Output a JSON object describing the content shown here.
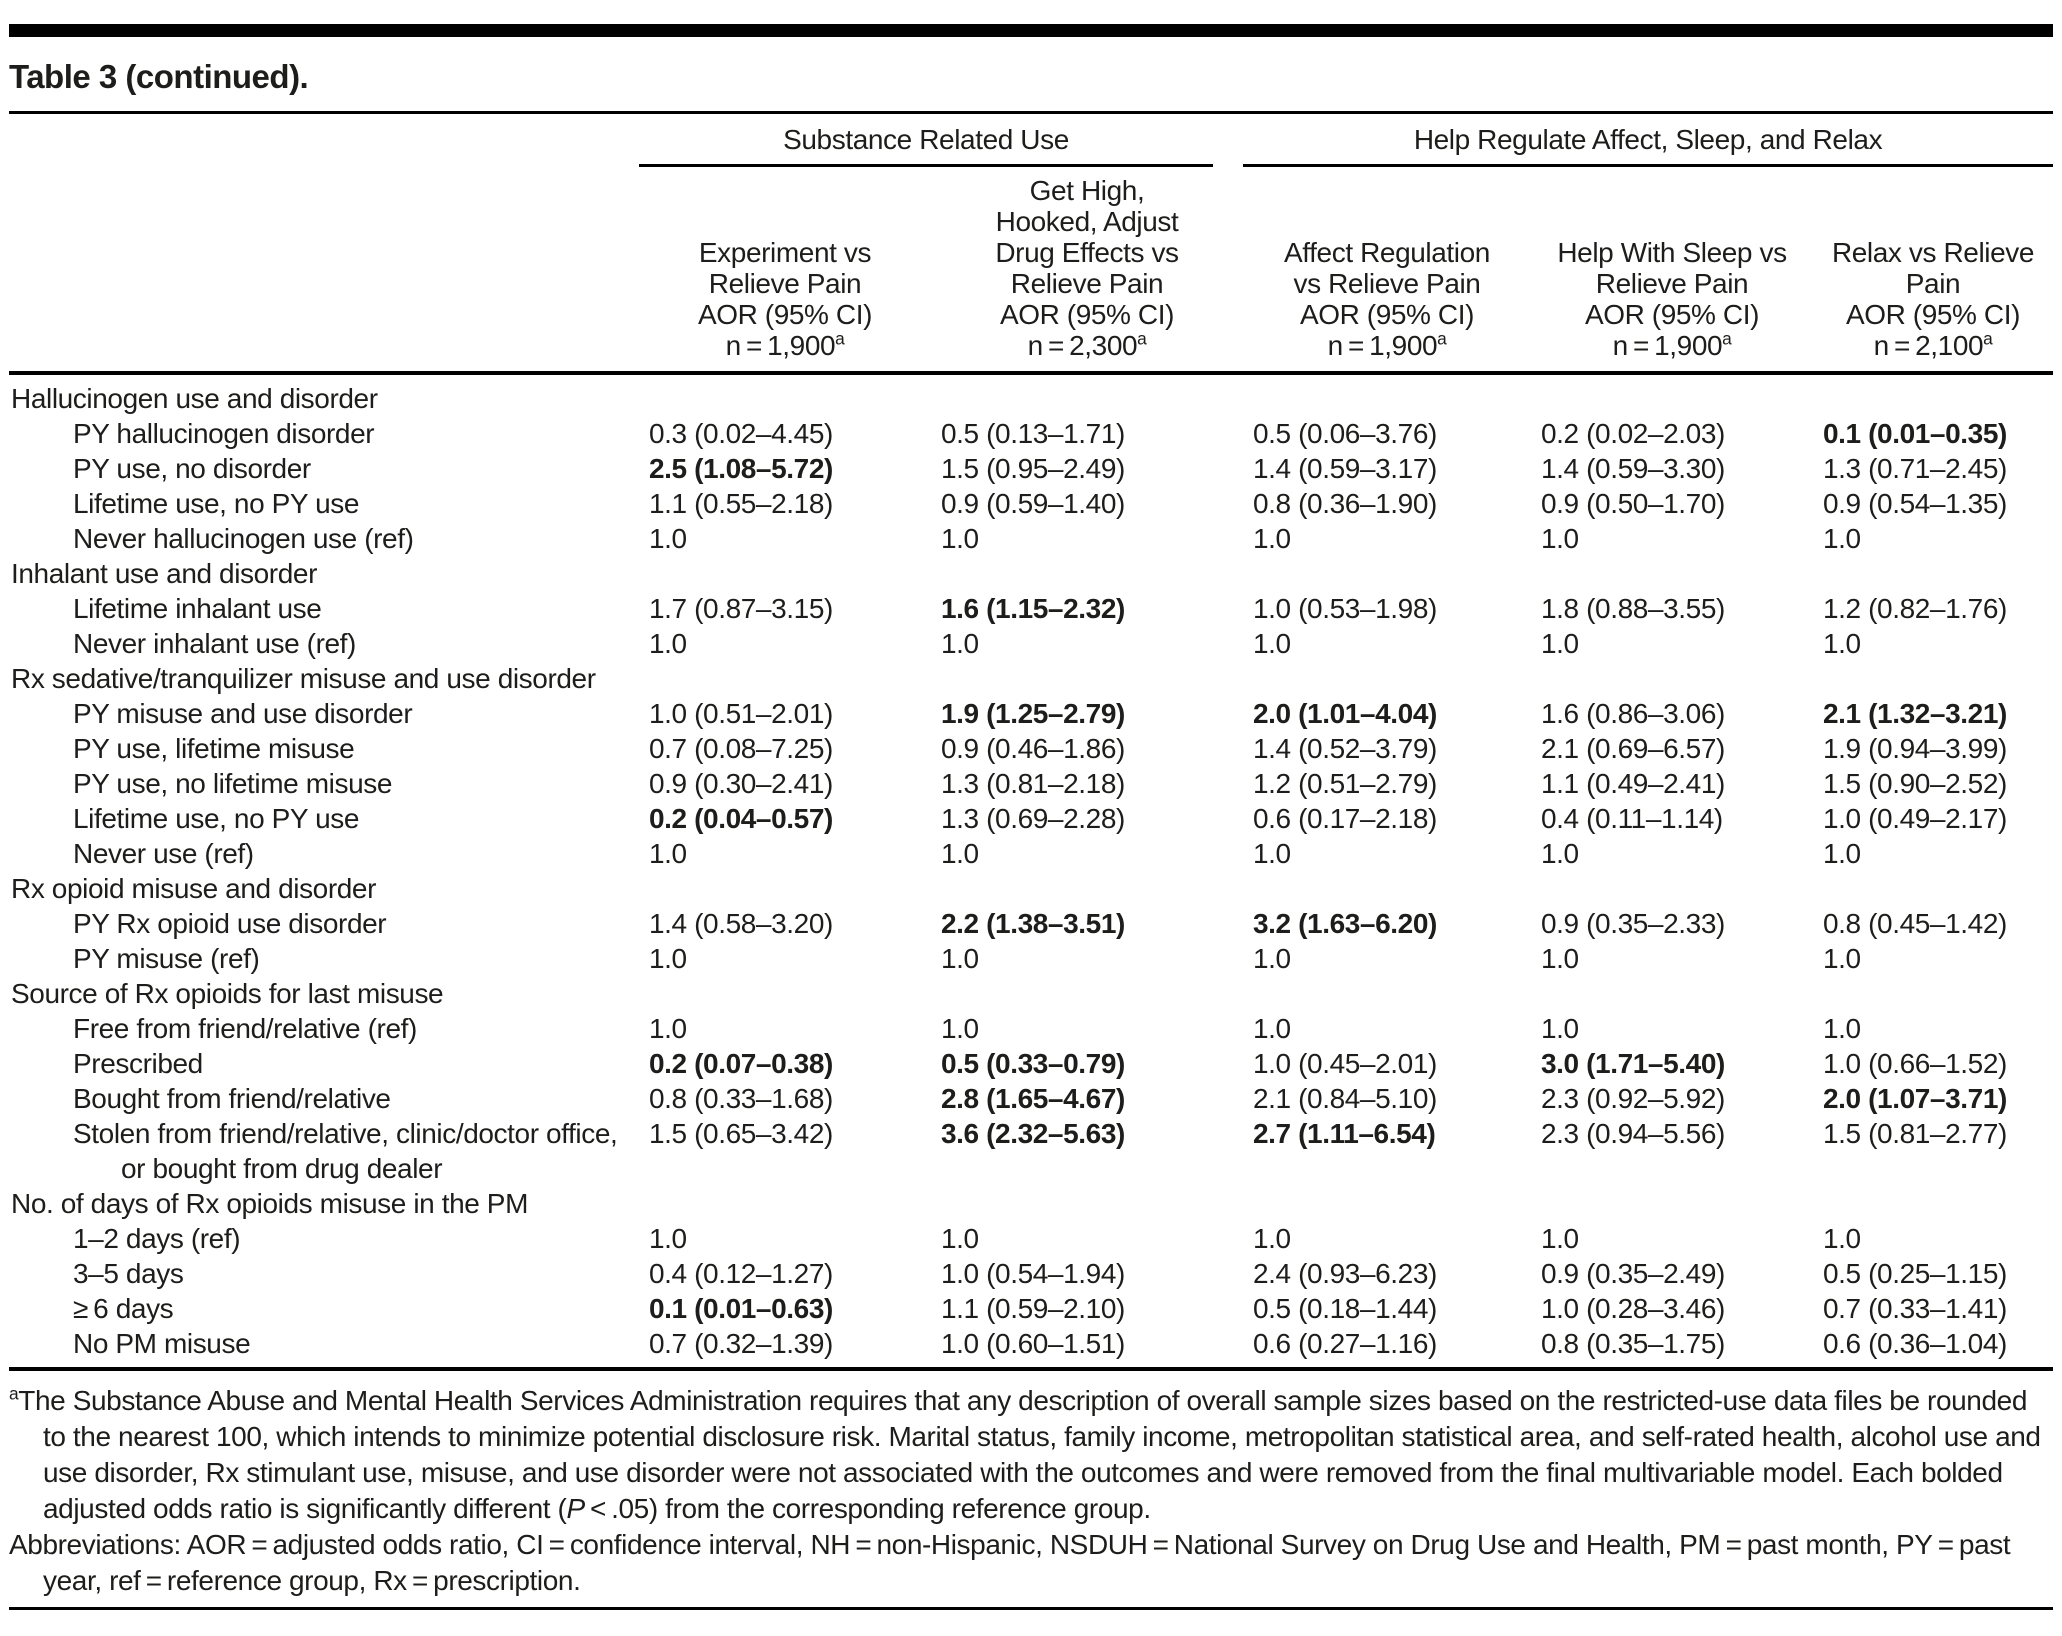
{
  "title": "Table 3 (continued).",
  "colors": {
    "text": "#1d1d1b",
    "rule": "#000000",
    "background": "#ffffff"
  },
  "table": {
    "col_groups": [
      {
        "label": "Substance Related Use",
        "span": 2
      },
      {
        "label": "Help Regulate Affect, Sleep, and Relax",
        "span": 3
      }
    ],
    "columns": [
      {
        "header_lines": [
          [
            {
              "text": "Experiment vs"
            }
          ],
          [
            {
              "text": "Relieve Pain"
            }
          ],
          [
            {
              "text": "AOR (95% CI)"
            }
          ],
          [
            {
              "text": "n = 1,900"
            },
            {
              "sup": "a"
            }
          ]
        ]
      },
      {
        "header_lines": [
          [
            {
              "text": "Get High,"
            }
          ],
          [
            {
              "text": "Hooked, Adjust"
            }
          ],
          [
            {
              "text": "Drug Effects vs"
            }
          ],
          [
            {
              "text": "Relieve Pain"
            }
          ],
          [
            {
              "text": "AOR (95% CI)"
            }
          ],
          [
            {
              "text": "n = 2,300"
            },
            {
              "sup": "a"
            }
          ]
        ]
      },
      {
        "header_lines": [
          [
            {
              "text": "Affect Regulation"
            }
          ],
          [
            {
              "text": "vs Relieve Pain"
            }
          ],
          [
            {
              "text": "AOR (95% CI)"
            }
          ],
          [
            {
              "text": "n = 1,900"
            },
            {
              "sup": "a"
            }
          ]
        ]
      },
      {
        "header_lines": [
          [
            {
              "text": "Help With Sleep vs"
            }
          ],
          [
            {
              "text": "Relieve Pain"
            }
          ],
          [
            {
              "text": "AOR (95% CI)"
            }
          ],
          [
            {
              "text": "n = 1,900"
            },
            {
              "sup": "a"
            }
          ]
        ]
      },
      {
        "header_lines": [
          [
            {
              "text": "Relax vs Relieve"
            }
          ],
          [
            {
              "text": "Pain"
            }
          ],
          [
            {
              "text": "AOR (95% CI)"
            }
          ],
          [
            {
              "text": "n = 2,100"
            },
            {
              "sup": "a"
            }
          ]
        ]
      }
    ],
    "rows": [
      {
        "type": "section",
        "label": "Hallucinogen use and disorder",
        "cells": null
      },
      {
        "type": "data",
        "label": "PY hallucinogen disorder",
        "cells": [
          {
            "v": "0.3 (0.02–4.45)"
          },
          {
            "v": "0.5 (0.13–1.71)"
          },
          {
            "v": "0.5 (0.06–3.76)"
          },
          {
            "v": "0.2 (0.02–2.03)"
          },
          {
            "v": "0.1 (0.01–0.35)",
            "b": true
          }
        ]
      },
      {
        "type": "data",
        "label": "PY use, no disorder",
        "cells": [
          {
            "v": "2.5 (1.08–5.72)",
            "b": true
          },
          {
            "v": "1.5 (0.95–2.49)"
          },
          {
            "v": "1.4 (0.59–3.17)"
          },
          {
            "v": "1.4 (0.59–3.30)"
          },
          {
            "v": "1.3 (0.71–2.45)"
          }
        ]
      },
      {
        "type": "data",
        "label": "Lifetime use, no PY use",
        "cells": [
          {
            "v": "1.1 (0.55–2.18)"
          },
          {
            "v": "0.9 (0.59–1.40)"
          },
          {
            "v": "0.8 (0.36–1.90)"
          },
          {
            "v": "0.9 (0.50–1.70)"
          },
          {
            "v": "0.9 (0.54–1.35)"
          }
        ]
      },
      {
        "type": "data",
        "label": "Never hallucinogen use (ref)",
        "cells": [
          {
            "v": "1.0"
          },
          {
            "v": "1.0"
          },
          {
            "v": "1.0"
          },
          {
            "v": "1.0"
          },
          {
            "v": "1.0"
          }
        ]
      },
      {
        "type": "section",
        "label": "Inhalant use and disorder",
        "cells": null
      },
      {
        "type": "data",
        "label": "Lifetime inhalant use",
        "cells": [
          {
            "v": "1.7 (0.87–3.15)"
          },
          {
            "v": "1.6 (1.15–2.32)",
            "b": true
          },
          {
            "v": "1.0 (0.53–1.98)"
          },
          {
            "v": "1.8 (0.88–3.55)"
          },
          {
            "v": "1.2 (0.82–1.76)"
          }
        ]
      },
      {
        "type": "data",
        "label": "Never inhalant use (ref)",
        "cells": [
          {
            "v": "1.0"
          },
          {
            "v": "1.0"
          },
          {
            "v": "1.0"
          },
          {
            "v": "1.0"
          },
          {
            "v": "1.0"
          }
        ]
      },
      {
        "type": "section",
        "label": "Rx sedative/tranquilizer misuse and use disorder",
        "cells": null
      },
      {
        "type": "data",
        "label": "PY misuse and use disorder",
        "cells": [
          {
            "v": "1.0 (0.51–2.01)"
          },
          {
            "v": "1.9 (1.25–2.79)",
            "b": true
          },
          {
            "v": "2.0 (1.01–4.04)",
            "b": true
          },
          {
            "v": "1.6 (0.86–3.06)"
          },
          {
            "v": "2.1 (1.32–3.21)",
            "b": true
          }
        ]
      },
      {
        "type": "data",
        "label": "PY use, lifetime misuse",
        "cells": [
          {
            "v": "0.7 (0.08–7.25)"
          },
          {
            "v": "0.9 (0.46–1.86)"
          },
          {
            "v": "1.4 (0.52–3.79)"
          },
          {
            "v": "2.1 (0.69–6.57)"
          },
          {
            "v": "1.9 (0.94–3.99)"
          }
        ]
      },
      {
        "type": "data",
        "label": "PY use, no lifetime misuse",
        "cells": [
          {
            "v": "0.9 (0.30–2.41)"
          },
          {
            "v": "1.3 (0.81–2.18)"
          },
          {
            "v": "1.2 (0.51–2.79)"
          },
          {
            "v": "1.1 (0.49–2.41)"
          },
          {
            "v": "1.5 (0.90–2.52)"
          }
        ]
      },
      {
        "type": "data",
        "label": "Lifetime use, no PY use",
        "cells": [
          {
            "v": "0.2 (0.04–0.57)",
            "b": true
          },
          {
            "v": "1.3 (0.69–2.28)"
          },
          {
            "v": "0.6 (0.17–2.18)"
          },
          {
            "v": "0.4 (0.11–1.14)"
          },
          {
            "v": "1.0 (0.49–2.17)"
          }
        ]
      },
      {
        "type": "data",
        "label": "Never use (ref)",
        "cells": [
          {
            "v": "1.0"
          },
          {
            "v": "1.0"
          },
          {
            "v": "1.0"
          },
          {
            "v": "1.0"
          },
          {
            "v": "1.0"
          }
        ]
      },
      {
        "type": "section",
        "label": "Rx opioid misuse and disorder",
        "cells": null
      },
      {
        "type": "data",
        "label": "PY Rx opioid use disorder",
        "cells": [
          {
            "v": "1.4 (0.58–3.20)"
          },
          {
            "v": "2.2 (1.38–3.51)",
            "b": true
          },
          {
            "v": "3.2 (1.63–6.20)",
            "b": true
          },
          {
            "v": "0.9 (0.35–2.33)"
          },
          {
            "v": "0.8 (0.45–1.42)"
          }
        ]
      },
      {
        "type": "data",
        "label": "PY misuse (ref)",
        "cells": [
          {
            "v": "1.0"
          },
          {
            "v": "1.0"
          },
          {
            "v": "1.0"
          },
          {
            "v": "1.0"
          },
          {
            "v": "1.0"
          }
        ]
      },
      {
        "type": "section",
        "label": "Source of Rx opioids for last misuse",
        "cells": null
      },
      {
        "type": "data",
        "label": "Free from friend/relative (ref)",
        "cells": [
          {
            "v": "1.0"
          },
          {
            "v": "1.0"
          },
          {
            "v": "1.0"
          },
          {
            "v": "1.0"
          },
          {
            "v": "1.0"
          }
        ]
      },
      {
        "type": "data",
        "label": "Prescribed",
        "cells": [
          {
            "v": "0.2 (0.07–0.38)",
            "b": true
          },
          {
            "v": "0.5 (0.33–0.79)",
            "b": true
          },
          {
            "v": "1.0 (0.45–2.01)"
          },
          {
            "v": "3.0 (1.71–5.40)",
            "b": true
          },
          {
            "v": "1.0 (0.66–1.52)"
          }
        ]
      },
      {
        "type": "data",
        "label": "Bought from friend/relative",
        "cells": [
          {
            "v": "0.8 (0.33–1.68)"
          },
          {
            "v": "2.8 (1.65–4.67)",
            "b": true
          },
          {
            "v": "2.1 (0.84–5.10)"
          },
          {
            "v": "2.3 (0.92–5.92)"
          },
          {
            "v": "2.0 (1.07–3.71)",
            "b": true
          }
        ]
      },
      {
        "type": "data",
        "label": "Stolen from friend/relative, clinic/doctor office, or bought from drug dealer",
        "wrap": true,
        "cells": [
          {
            "v": "1.5 (0.65–3.42)"
          },
          {
            "v": "3.6 (2.32–5.63)",
            "b": true
          },
          {
            "v": "2.7 (1.11–6.54)",
            "b": true
          },
          {
            "v": "2.3 (0.94–5.56)"
          },
          {
            "v": "1.5 (0.81–2.77)"
          }
        ]
      },
      {
        "type": "section",
        "label": "No. of days of Rx opioids misuse in the PM",
        "cells": null
      },
      {
        "type": "data",
        "label": "1–2 days (ref)",
        "cells": [
          {
            "v": "1.0"
          },
          {
            "v": "1.0"
          },
          {
            "v": "1.0"
          },
          {
            "v": "1.0"
          },
          {
            "v": "1.0"
          }
        ]
      },
      {
        "type": "data",
        "label": "3–5 days",
        "cells": [
          {
            "v": "0.4 (0.12–1.27)"
          },
          {
            "v": "1.0 (0.54–1.94)"
          },
          {
            "v": "2.4 (0.93–6.23)"
          },
          {
            "v": "0.9 (0.35–2.49)"
          },
          {
            "v": "0.5 (0.25–1.15)"
          }
        ]
      },
      {
        "type": "data",
        "label": "≥ 6 days",
        "cells": [
          {
            "v": "0.1 (0.01–0.63)",
            "b": true
          },
          {
            "v": "1.1 (0.59–2.10)"
          },
          {
            "v": "0.5 (0.18–1.44)"
          },
          {
            "v": "1.0 (0.28–3.46)"
          },
          {
            "v": "0.7 (0.33–1.41)"
          }
        ]
      },
      {
        "type": "data",
        "label": "No PM misuse",
        "cells": [
          {
            "v": "0.7 (0.32–1.39)"
          },
          {
            "v": "1.0 (0.60–1.51)"
          },
          {
            "v": "0.6 (0.27–1.16)"
          },
          {
            "v": "0.8 (0.35–1.75)"
          },
          {
            "v": "0.6 (0.36–1.04)"
          }
        ]
      }
    ]
  },
  "footnotes": [
    {
      "segments": [
        {
          "sup": "a"
        },
        {
          "text": "The Substance Abuse and Mental Health Services Administration requires that any description of overall sample sizes based on the restricted-use data files be rounded to the nearest 100, which intends to minimize potential disclosure risk. Marital status, family income, metropolitan statistical area, and self-rated health, alcohol use and use disorder, Rx stimulant use, misuse, and use disorder were not associated with the outcomes and were removed from the final multivariable model. Each bolded adjusted odds ratio is significantly different ("
        },
        {
          "italic": "P"
        },
        {
          "text": " < .05) from the corresponding reference group."
        }
      ]
    },
    {
      "segments": [
        {
          "text": "Abbreviations: AOR = adjusted odds ratio, CI = confidence interval, NH = non-Hispanic, NSDUH = National Survey on Drug Use and Health, PM = past month, PY = past year, ref = reference group, Rx = prescription."
        }
      ]
    }
  ]
}
